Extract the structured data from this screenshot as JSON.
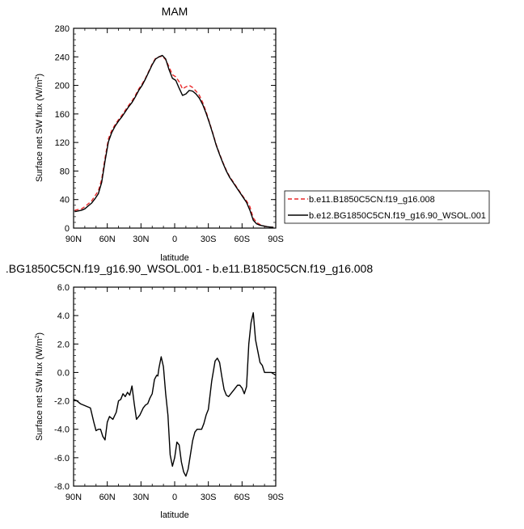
{
  "chart_data": [
    {
      "type": "line",
      "title": "MAM",
      "xlabel": "latitude",
      "ylabel_main": "Surface net SW flux (W/m",
      "ylabel_sup": "2",
      "ylabel_close": ")",
      "xlim": [
        90,
        -90
      ],
      "ylim": [
        0,
        280
      ],
      "xticks": [
        90,
        60,
        30,
        0,
        -30,
        -60,
        -90
      ],
      "xtick_labels": [
        "90N",
        "60N",
        "30N",
        "0",
        "30S",
        "60S",
        "90S"
      ],
      "yticks": [
        0,
        40,
        80,
        120,
        160,
        200,
        240,
        280
      ],
      "ytick_labels": [
        "0",
        "40",
        "80",
        "120",
        "160",
        "200",
        "240",
        "280"
      ],
      "legend_position": "right",
      "series": [
        {
          "name": "b.e11.B1850C5CN.f19_g16.008",
          "color": "#e8282a",
          "dash": "dashed",
          "x": [
            89,
            86,
            83,
            80,
            77,
            74,
            71,
            68,
            65,
            62,
            59,
            56,
            53,
            50,
            47,
            44,
            41,
            38,
            35,
            32,
            29,
            26,
            23,
            20,
            17,
            14,
            11,
            8,
            5,
            2,
            -1,
            -4,
            -7,
            -10,
            -13,
            -16,
            -19,
            -22,
            -25,
            -28,
            -31,
            -34,
            -37,
            -40,
            -43,
            -46,
            -49,
            -52,
            -55,
            -58,
            -61,
            -64,
            -67,
            -70,
            -73,
            -76,
            -79,
            -82,
            -85,
            -88
          ],
          "y": [
            25,
            26,
            27,
            30,
            34,
            38,
            45,
            52,
            68,
            98,
            125,
            137,
            145,
            152,
            158,
            165,
            172,
            178,
            186,
            195,
            202,
            210,
            220,
            230,
            238,
            240,
            241,
            236,
            226,
            215,
            212,
            205,
            195,
            198,
            200,
            197,
            192,
            186,
            176,
            163,
            148,
            133,
            117,
            104,
            92,
            81,
            72,
            65,
            58,
            51,
            44,
            38,
            30,
            14,
            8,
            5,
            3,
            2,
            1.5,
            1
          ]
        },
        {
          "name": "b.e12.BG1850C5CN.f19_g16.90_WSOL.001",
          "color": "#000000",
          "dash": "solid",
          "x": [
            89,
            86,
            83,
            80,
            77,
            74,
            71,
            68,
            65,
            62,
            59,
            56,
            53,
            50,
            47,
            44,
            41,
            38,
            35,
            32,
            29,
            26,
            23,
            20,
            17,
            14,
            11,
            8,
            5,
            2,
            -1,
            -4,
            -7,
            -10,
            -13,
            -16,
            -19,
            -22,
            -25,
            -28,
            -31,
            -34,
            -37,
            -40,
            -43,
            -46,
            -49,
            -52,
            -55,
            -58,
            -61,
            -64,
            -67,
            -70,
            -73,
            -76,
            -79,
            -82,
            -85,
            -88
          ],
          "y": [
            23,
            24,
            25,
            27,
            31,
            35,
            41,
            48,
            64,
            94,
            121,
            134,
            143,
            150,
            156,
            163,
            170,
            176,
            184,
            193,
            200,
            209,
            219,
            229,
            237,
            240,
            242,
            237,
            222,
            210,
            207,
            196,
            186,
            188,
            193,
            192,
            188,
            182,
            173,
            161,
            147,
            132,
            116,
            103,
            91,
            80,
            71,
            64,
            57,
            50,
            43,
            36,
            25,
            11,
            6,
            4,
            3,
            2,
            1.5,
            1
          ]
        }
      ]
    },
    {
      "type": "line",
      "title": ".BG1850C5CN.f19_g16.90_WSOL.001 - b.e11.B1850C5CN.f19_g16.008",
      "xlabel": "latitude",
      "ylabel_main": "Surface net SW flux (W/m",
      "ylabel_sup": "2",
      "ylabel_close": ")",
      "xlim": [
        90,
        -90
      ],
      "ylim": [
        -8,
        6
      ],
      "xticks": [
        90,
        60,
        30,
        0,
        -30,
        -60,
        -90
      ],
      "xtick_labels": [
        "90N",
        "60N",
        "30N",
        "0",
        "30S",
        "60S",
        "90S"
      ],
      "yticks": [
        6,
        4,
        2,
        0,
        -2,
        -4,
        -6,
        -8
      ],
      "ytick_labels": [
        "6.0",
        "4.0",
        "2.0",
        "0.0",
        "-2.0",
        "-4.0",
        "-6.0",
        "-8.0"
      ],
      "series": [
        {
          "color": "#000000",
          "dash": "solid",
          "x": [
            90,
            87,
            84,
            81,
            78,
            75,
            72,
            70,
            68,
            66,
            64,
            62,
            60,
            58,
            55,
            52,
            50,
            48,
            46,
            44,
            42,
            40,
            38,
            36,
            34,
            31,
            28,
            26,
            24,
            22,
            20,
            18,
            16,
            15,
            14,
            12,
            10,
            8,
            6,
            4,
            2,
            0,
            -2,
            -4,
            -6,
            -8,
            -10,
            -12,
            -14,
            -16,
            -18,
            -20,
            -22,
            -24,
            -26,
            -28,
            -30,
            -33,
            -36,
            -38,
            -40,
            -42,
            -44,
            -46,
            -48,
            -50,
            -53,
            -56,
            -58,
            -60,
            -62,
            -64,
            -66,
            -68,
            -70,
            -72,
            -74,
            -76,
            -78,
            -80,
            -82,
            -84,
            -86,
            -88,
            -90
          ],
          "y": [
            -1.9,
            -2.0,
            -2.2,
            -2.3,
            -2.4,
            -2.5,
            -3.5,
            -4.1,
            -4.0,
            -4.0,
            -4.5,
            -4.75,
            -3.5,
            -3.1,
            -3.3,
            -2.8,
            -2.0,
            -1.9,
            -1.5,
            -1.7,
            -1.4,
            -1.6,
            -0.95,
            -2.2,
            -3.3,
            -3.0,
            -2.5,
            -2.3,
            -2.2,
            -1.8,
            -1.5,
            -0.5,
            -0.2,
            -0.25,
            0.3,
            1.1,
            0.4,
            -1.5,
            -3.0,
            -5.8,
            -6.6,
            -6.0,
            -4.9,
            -5.1,
            -6.3,
            -7.0,
            -7.3,
            -6.8,
            -5.8,
            -4.8,
            -4.2,
            -4.0,
            -4.0,
            -4.0,
            -3.6,
            -3.0,
            -2.6,
            -0.6,
            0.8,
            1.0,
            0.7,
            -0.3,
            -1.2,
            -1.6,
            -1.7,
            -1.5,
            -1.2,
            -0.9,
            -0.9,
            -1.1,
            -1.5,
            -1.0,
            2.0,
            3.5,
            4.2,
            2.3,
            1.5,
            0.7,
            0.5,
            0.0,
            0.0,
            0.0,
            0.0,
            -0.1,
            -0.2
          ]
        }
      ]
    }
  ]
}
